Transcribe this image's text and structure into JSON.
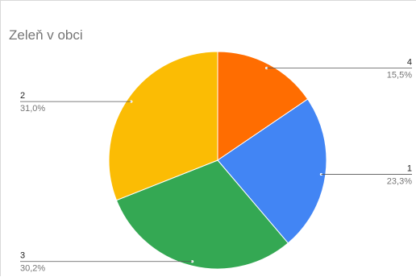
{
  "chart_data": {
    "type": "pie",
    "title": "Zeleň v obci",
    "slices": [
      {
        "label": "4",
        "value": 15.5,
        "display": "15,5%",
        "color": "#ff6d01"
      },
      {
        "label": "1",
        "value": 23.3,
        "display": "23,3%",
        "color": "#4285f4"
      },
      {
        "label": "3",
        "value": 30.2,
        "display": "30,2%",
        "color": "#34a853"
      },
      {
        "label": "2",
        "value": 31.0,
        "display": "31,0%",
        "color": "#fbbc04"
      }
    ],
    "legend": "none",
    "labels": "outside-with-leader-lines"
  }
}
